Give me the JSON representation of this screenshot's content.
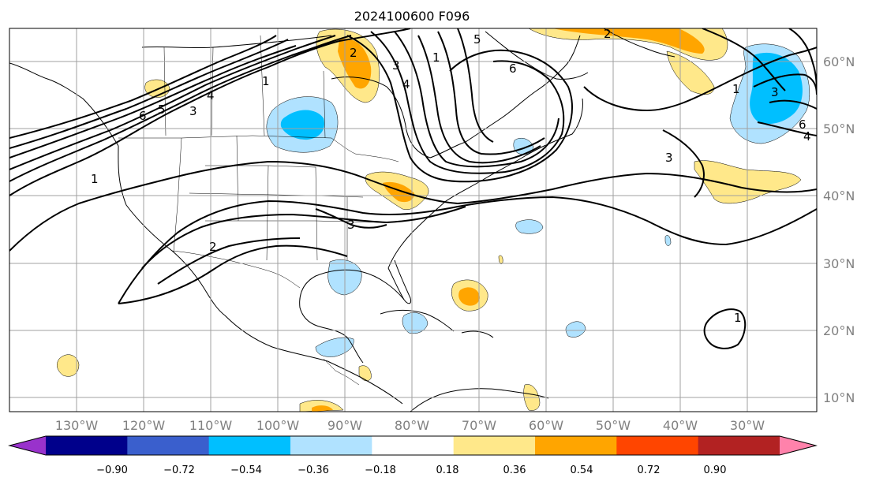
{
  "title": "2024100600 F096",
  "lon_labels": [
    "130°W",
    "120°W",
    "110°W",
    "100°W",
    "90°W",
    "80°W",
    "70°W",
    "60°W",
    "50°W",
    "40°W",
    "30°W"
  ],
  "lat_labels": [
    "60°N",
    "50°N",
    "40°N",
    "30°N",
    "20°N",
    "10°N"
  ],
  "colorbar": {
    "ticks": [
      "−0.90",
      "−0.72",
      "−0.54",
      "−0.36",
      "−0.18",
      "0.18",
      "0.36",
      "0.54",
      "0.72",
      "0.90"
    ],
    "colors": [
      "#9932cc",
      "#00008b",
      "#3a5fcd",
      "#00bfff",
      "#b0e2ff",
      "#ffffff",
      "#ffe88a",
      "#ffa500",
      "#ff4500",
      "#b22222",
      "#ff82ab"
    ]
  },
  "contour_labels": [
    "1",
    "2",
    "3",
    "4",
    "5",
    "6",
    "1",
    "2",
    "3",
    "4",
    "5",
    "6",
    "1",
    "3",
    "4",
    "6",
    "3",
    "1",
    "2",
    "3",
    "1"
  ],
  "colors": {
    "contour": "#000000",
    "coast": "#000000",
    "grid": "#a0a0a0",
    "axis_text": "#808080"
  }
}
